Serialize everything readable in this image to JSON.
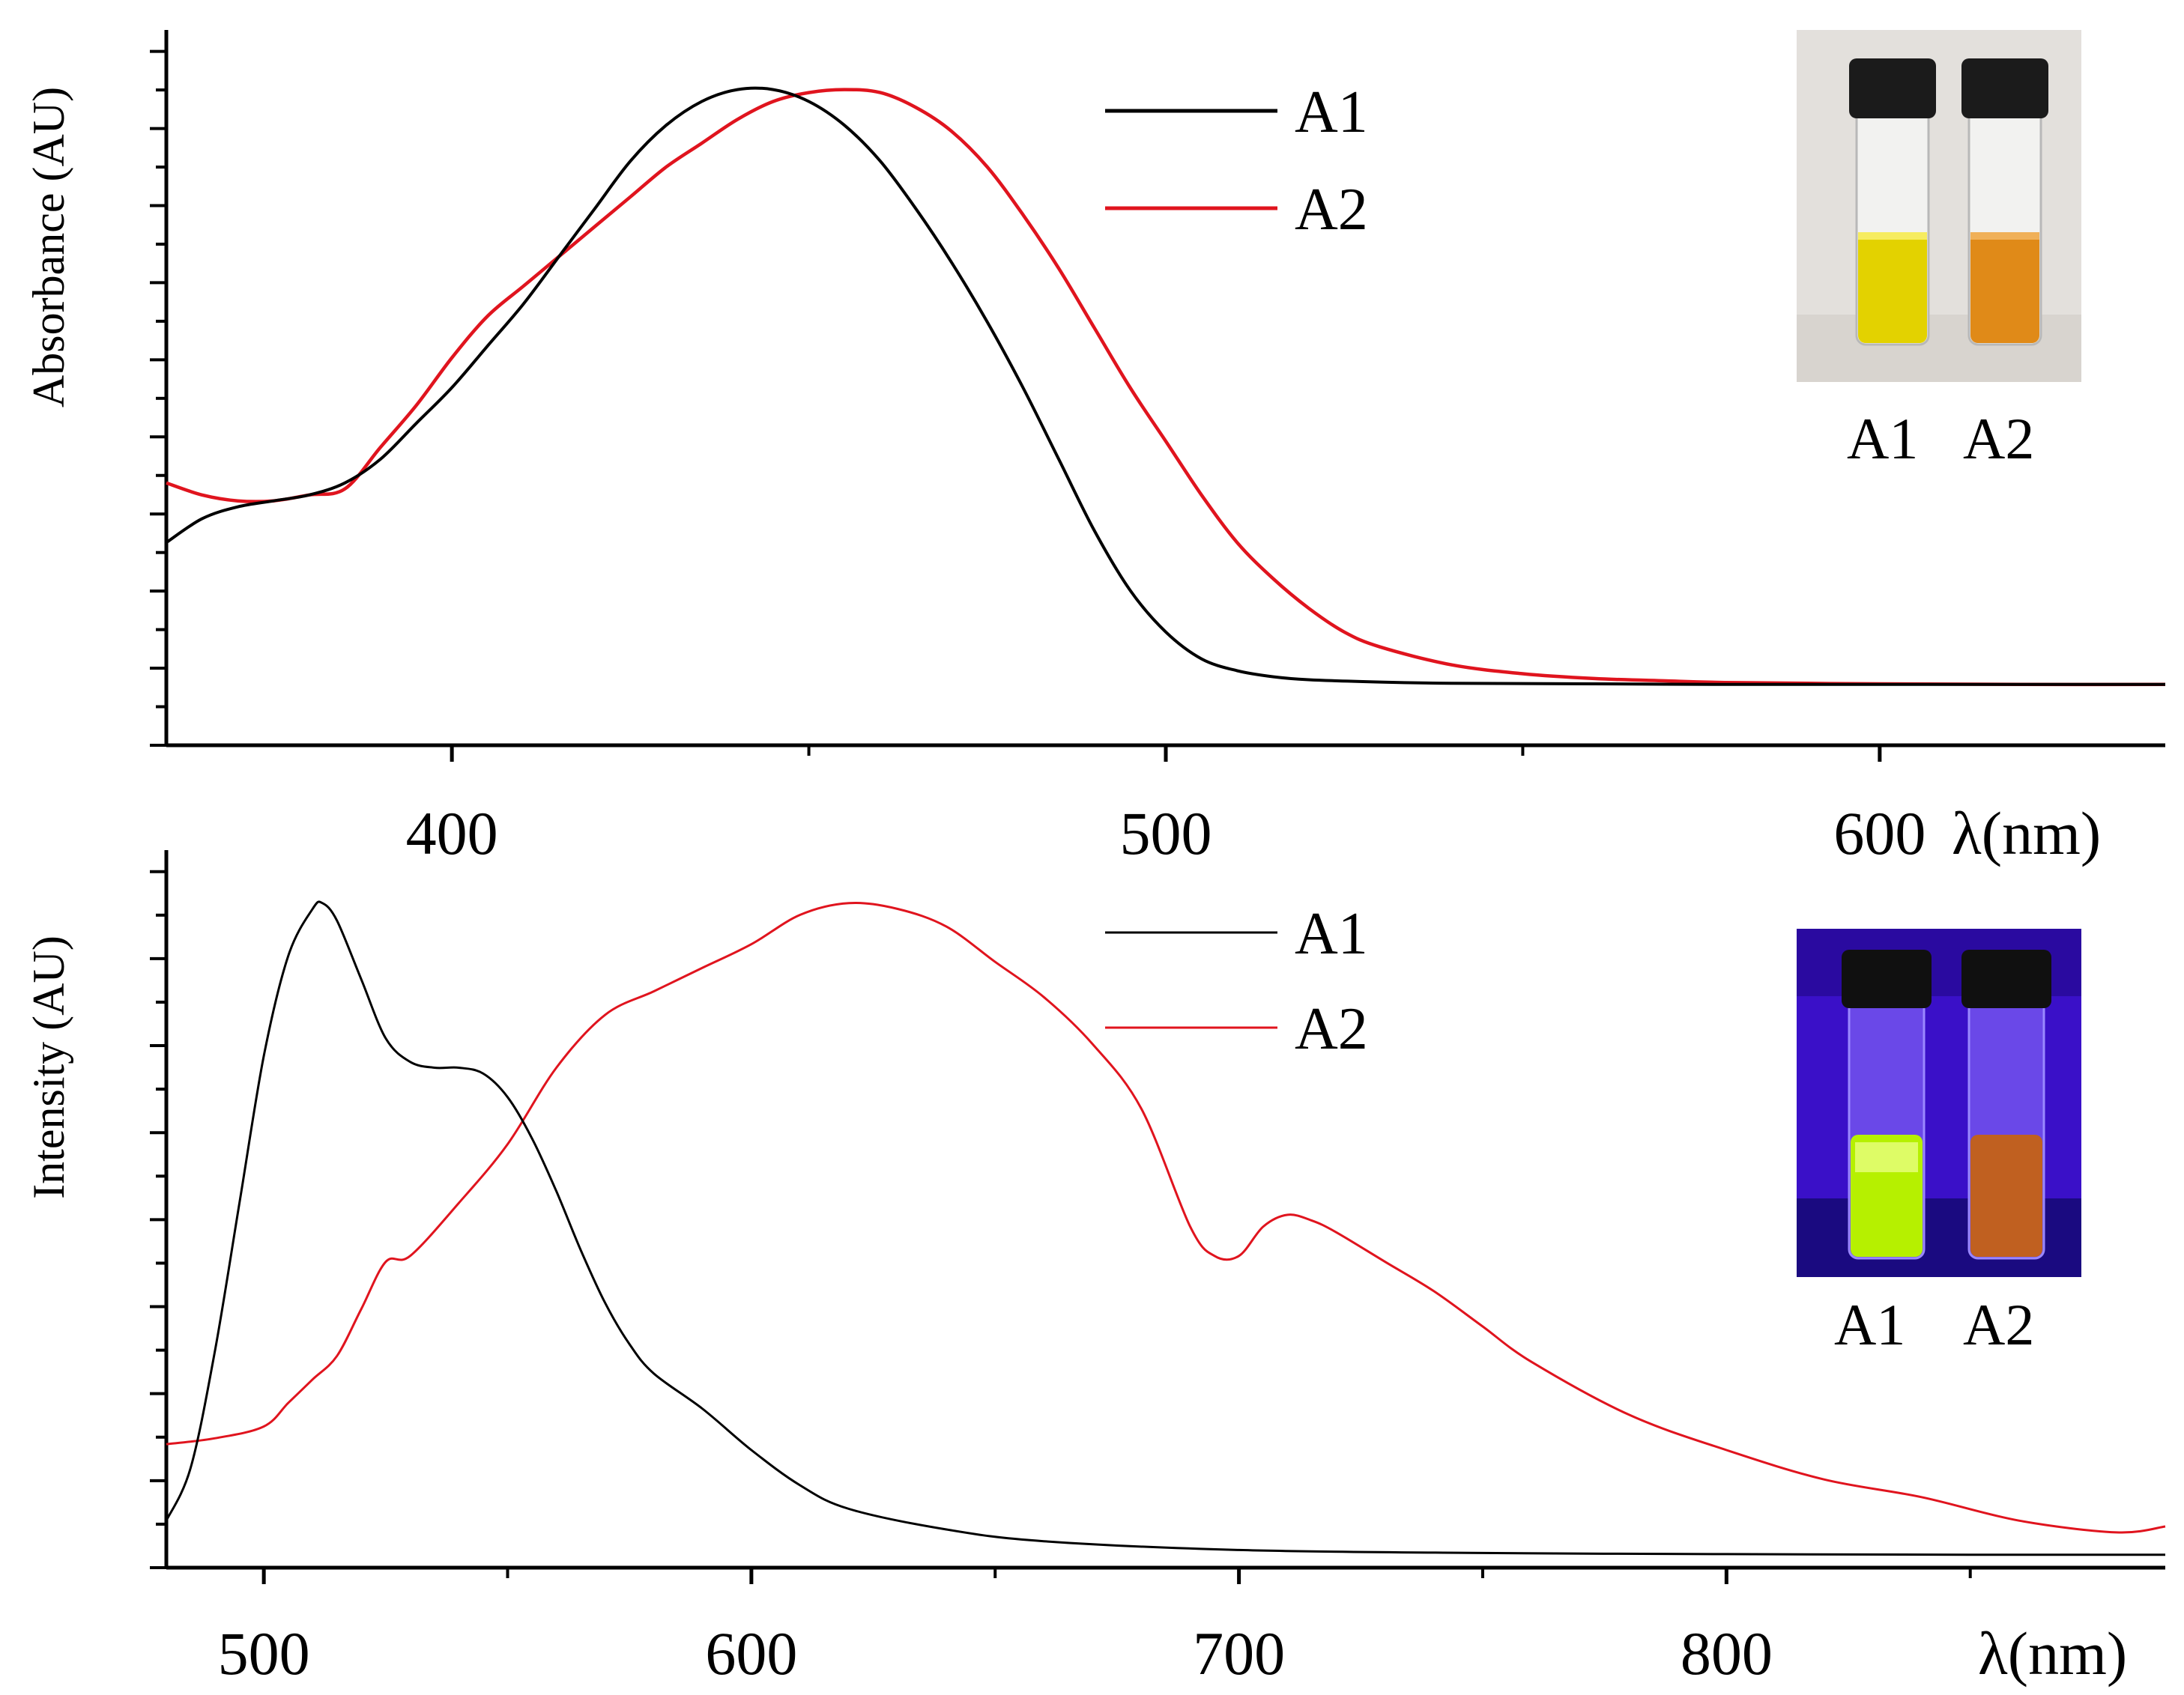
{
  "figure": {
    "colors": {
      "A1": "#000000",
      "A2": "#e0141e"
    }
  },
  "chart_data": [
    {
      "type": "line",
      "id": "absorbance",
      "title": "",
      "xlabel": "λ(nm)",
      "ylabel": "Absorbance (AU)",
      "xlim": [
        360,
        640
      ],
      "ylim": [
        -0.1,
        1.1
      ],
      "xticks_major": [
        400,
        500,
        600
      ],
      "xtick_labels": [
        "400",
        "500",
        "600"
      ],
      "xticks_minor": [
        450,
        550
      ],
      "ytick_labels_shown": false,
      "legend": {
        "position": "top-center",
        "entries": [
          "A1",
          "A2"
        ]
      },
      "photo": {
        "labels": [
          "A1",
          "A2"
        ],
        "lighting": "daylight",
        "vial_colors": [
          "#e3d200",
          "#e08a18"
        ]
      },
      "series": [
        {
          "name": "A1",
          "color": "#000000",
          "x": [
            360,
            365,
            370,
            375,
            380,
            385,
            390,
            395,
            400,
            405,
            410,
            415,
            420,
            425,
            430,
            435,
            440,
            445,
            450,
            455,
            460,
            465,
            470,
            475,
            480,
            485,
            490,
            495,
            500,
            505,
            510,
            515,
            520,
            530,
            540,
            560,
            580,
            600,
            620,
            640
          ],
          "y": [
            0.24,
            0.28,
            0.3,
            0.31,
            0.32,
            0.34,
            0.38,
            0.44,
            0.5,
            0.57,
            0.64,
            0.72,
            0.8,
            0.88,
            0.94,
            0.98,
            1.0,
            1.0,
            0.98,
            0.94,
            0.88,
            0.8,
            0.71,
            0.61,
            0.5,
            0.38,
            0.26,
            0.16,
            0.09,
            0.045,
            0.025,
            0.015,
            0.01,
            0.006,
            0.004,
            0.003,
            0.002,
            0.002,
            0.002,
            0.002
          ]
        },
        {
          "name": "A2",
          "color": "#e0141e",
          "x": [
            360,
            365,
            370,
            375,
            380,
            385,
            390,
            395,
            400,
            405,
            410,
            415,
            420,
            425,
            430,
            435,
            440,
            445,
            450,
            455,
            460,
            465,
            470,
            475,
            480,
            485,
            490,
            495,
            500,
            505,
            510,
            515,
            520,
            525,
            530,
            540,
            550,
            560,
            570,
            580,
            600,
            620,
            640
          ],
          "y": [
            0.34,
            0.32,
            0.31,
            0.31,
            0.32,
            0.33,
            0.4,
            0.47,
            0.55,
            0.62,
            0.67,
            0.72,
            0.77,
            0.82,
            0.87,
            0.91,
            0.95,
            0.98,
            0.995,
            1.0,
            0.995,
            0.97,
            0.93,
            0.87,
            0.79,
            0.7,
            0.6,
            0.5,
            0.41,
            0.32,
            0.24,
            0.18,
            0.13,
            0.09,
            0.065,
            0.035,
            0.02,
            0.012,
            0.008,
            0.005,
            0.003,
            0.002,
            0.002
          ]
        }
      ]
    },
    {
      "type": "line",
      "id": "emission",
      "title": "",
      "xlabel": "λ(nm)",
      "ylabel": "Intensity (AU)",
      "xlim": [
        480,
        890
      ],
      "ylim": [
        -0.02,
        1.2
      ],
      "xticks_major": [
        500,
        600,
        700,
        800
      ],
      "xtick_labels": [
        "500",
        "600",
        "700",
        "800"
      ],
      "xticks_minor": [
        550,
        650,
        750,
        850
      ],
      "ytick_labels_shown": false,
      "legend": {
        "position": "top-center",
        "entries": [
          "A1",
          "A2"
        ]
      },
      "photo": {
        "labels": [
          "A1",
          "A2"
        ],
        "lighting": "UV",
        "vial_colors": [
          "#b6f000",
          "#c06020"
        ]
      },
      "series": [
        {
          "name": "A1",
          "color": "#000000",
          "x": [
            480,
            485,
            490,
            495,
            500,
            505,
            510,
            512,
            515,
            520,
            525,
            530,
            535,
            540,
            545,
            550,
            555,
            560,
            565,
            570,
            575,
            580,
            590,
            600,
            610,
            620,
            640,
            660,
            700,
            750,
            800,
            850,
            890
          ],
          "y": [
            0.06,
            0.15,
            0.35,
            0.6,
            0.85,
            1.02,
            1.1,
            1.11,
            1.08,
            0.98,
            0.88,
            0.84,
            0.83,
            0.83,
            0.82,
            0.78,
            0.71,
            0.62,
            0.52,
            0.43,
            0.36,
            0.31,
            0.25,
            0.18,
            0.12,
            0.08,
            0.045,
            0.025,
            0.01,
            0.005,
            0.003,
            0.002,
            0.002
          ]
        },
        {
          "name": "A2",
          "color": "#e0141e",
          "x": [
            480,
            490,
            500,
            505,
            510,
            515,
            520,
            525,
            530,
            540,
            550,
            560,
            570,
            580,
            590,
            600,
            610,
            620,
            630,
            640,
            650,
            660,
            670,
            680,
            690,
            695,
            700,
            705,
            710,
            715,
            720,
            730,
            740,
            750,
            760,
            780,
            800,
            820,
            840,
            860,
            880,
            890
          ],
          "y": [
            0.19,
            0.2,
            0.22,
            0.26,
            0.3,
            0.34,
            0.42,
            0.5,
            0.51,
            0.6,
            0.7,
            0.83,
            0.92,
            0.96,
            1.0,
            1.04,
            1.09,
            1.11,
            1.1,
            1.07,
            1.01,
            0.95,
            0.87,
            0.76,
            0.56,
            0.51,
            0.51,
            0.56,
            0.58,
            0.57,
            0.55,
            0.5,
            0.45,
            0.39,
            0.33,
            0.24,
            0.18,
            0.13,
            0.1,
            0.06,
            0.04,
            0.05
          ]
        }
      ]
    }
  ]
}
